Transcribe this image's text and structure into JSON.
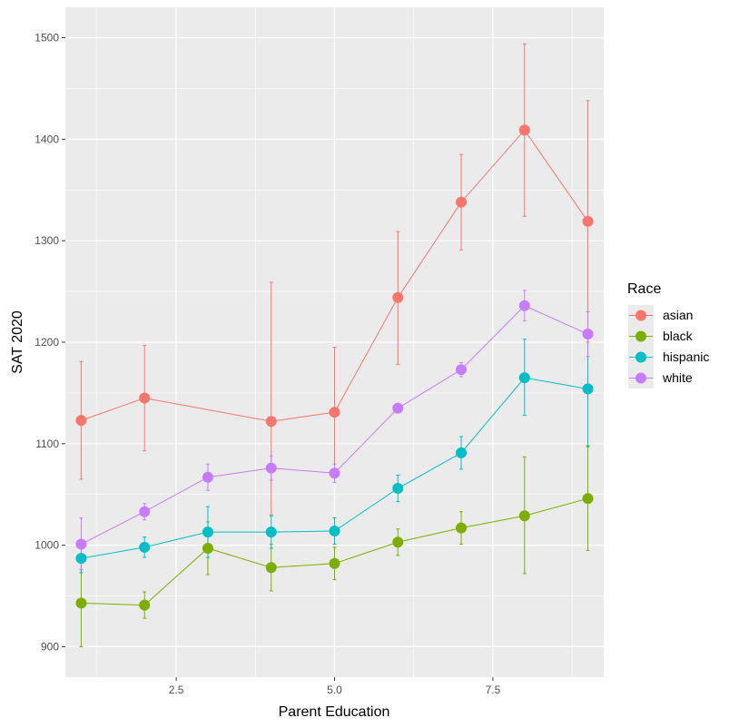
{
  "chart_data": {
    "type": "line",
    "title": "",
    "xlabel": "Parent Education",
    "ylabel": "SAT 2020",
    "xlim": [
      0.75,
      9.25
    ],
    "ylim": [
      870,
      1530
    ],
    "x_ticks": [
      2.5,
      5.0,
      7.5
    ],
    "x_tick_labels": [
      "2.5",
      "5.0",
      "7.5"
    ],
    "y_ticks": [
      900,
      1000,
      1100,
      1200,
      1300,
      1400,
      1500
    ],
    "y_tick_labels": [
      "900",
      "1000",
      "1100",
      "1200",
      "1300",
      "1400",
      "1500"
    ],
    "grid": true,
    "background": "#EBEBEB",
    "legend": {
      "title": "Race",
      "placement": "right"
    },
    "x": [
      1,
      2,
      3,
      4,
      5,
      6,
      7,
      8,
      9
    ],
    "series": [
      {
        "name": "asian",
        "color": "#F8766D",
        "x": [
          1,
          2,
          4,
          5,
          6,
          7,
          8,
          9
        ],
        "values": [
          1123,
          1145,
          1122,
          1131,
          1244,
          1338,
          1409,
          1319
        ],
        "lower": [
          1065,
          1093,
          1030,
          1068,
          1178,
          1291,
          1324,
          1200
        ],
        "upper": [
          1181,
          1197,
          1259,
          1195,
          1309,
          1385,
          1494,
          1438
        ]
      },
      {
        "name": "black",
        "color": "#7CAE00",
        "x": [
          1,
          2,
          3,
          4,
          5,
          6,
          7,
          8,
          9
        ],
        "values": [
          943,
          941,
          997,
          978,
          982,
          1003,
          1017,
          1029,
          1046
        ],
        "lower": [
          900,
          928,
          971,
          955,
          966,
          990,
          1001,
          972,
          995
        ],
        "upper": [
          986,
          954,
          1023,
          1001,
          998,
          1016,
          1033,
          1087,
          1097
        ]
      },
      {
        "name": "hispanic",
        "color": "#00BFC4",
        "x": [
          1,
          2,
          3,
          4,
          5,
          6,
          7,
          8,
          9
        ],
        "values": [
          987,
          998,
          1013,
          1013,
          1014,
          1056,
          1091,
          1165,
          1154
        ],
        "lower": [
          973,
          988,
          988,
          997,
          1001,
          1043,
          1075,
          1128,
          1098
        ],
        "upper": [
          1001,
          1008,
          1038,
          1029,
          1027,
          1069,
          1107,
          1203,
          1210
        ]
      },
      {
        "name": "white",
        "color": "#C77CFF",
        "x": [
          1,
          2,
          3,
          4,
          5,
          6,
          7,
          8,
          9
        ],
        "values": [
          1001,
          1033,
          1067,
          1076,
          1071,
          1135,
          1173,
          1236,
          1208
        ],
        "lower": [
          976,
          1025,
          1054,
          1064,
          1062,
          1131,
          1166,
          1221,
          1186
        ],
        "upper": [
          1027,
          1041,
          1080,
          1088,
          1080,
          1139,
          1180,
          1251,
          1230
        ]
      }
    ]
  }
}
